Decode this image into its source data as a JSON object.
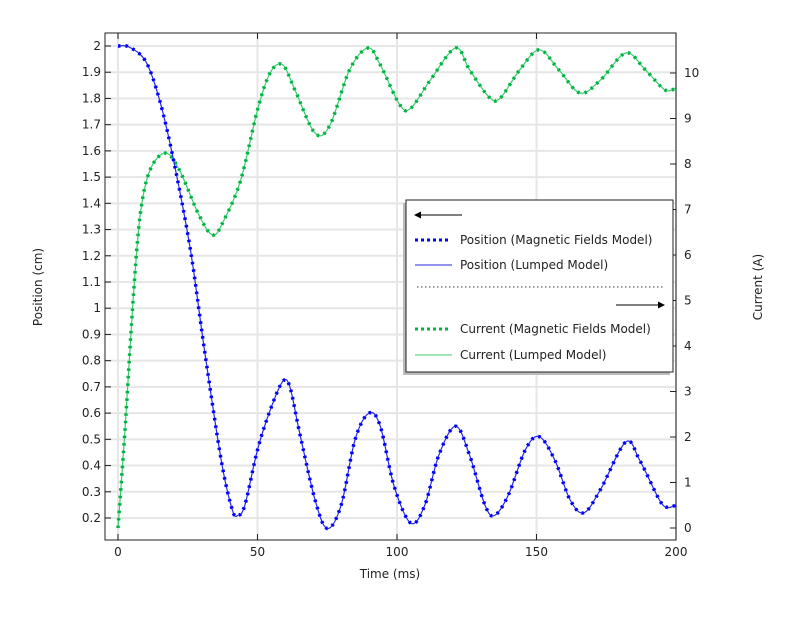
{
  "chart_data": {
    "type": "line",
    "xlabel": "Time (ms)",
    "ylabel_left": "Position (cm)",
    "ylabel_right": "Current (A)",
    "xlim": [
      -4,
      202
    ],
    "ylim_left": [
      0.12,
      2.05
    ],
    "ylim_right": [
      -0.3,
      10.8
    ],
    "x_ticks": [
      "0",
      "50",
      "100",
      "150",
      "200"
    ],
    "y_ticks_left": [
      "0.2",
      "0.3",
      "0.4",
      "0.5",
      "0.6",
      "0.7",
      "0.8",
      "0.9",
      "1",
      "1.1",
      "1.2",
      "1.3",
      "1.4",
      "1.5",
      "1.6",
      "1.7",
      "1.8",
      "1.9",
      "2"
    ],
    "y_ticks_right": [
      "0",
      "1",
      "2",
      "3",
      "4",
      "5",
      "6",
      "7",
      "8",
      "9",
      "10"
    ],
    "grid": true,
    "legend_placement": "right",
    "legend": {
      "left_axis_arrow": "left-arrow",
      "right_axis_arrow": "right-arrow",
      "entries": [
        {
          "label": "Position (Magnetic Fields Model)",
          "style": "dotted",
          "color": "#0000ff"
        },
        {
          "label": "Position (Lumped Model)",
          "style": "solid",
          "color": "#2a2ae0"
        },
        {
          "label": "Current (Magnetic Fields Model)",
          "style": "dotted",
          "color": "#00b444"
        },
        {
          "label": "Current (Lumped Model)",
          "style": "solid",
          "color": "#3ccc6e"
        }
      ]
    },
    "position": {
      "t": [
        0,
        4,
        10,
        15,
        20,
        26,
        31,
        37,
        41,
        43,
        45.5,
        50,
        54.5,
        59,
        61.6,
        65,
        70.6,
        75,
        80,
        85,
        90,
        94,
        99,
        105,
        110,
        115,
        121,
        126,
        131.5,
        135,
        140,
        146,
        151,
        156.6,
        162,
        167,
        173,
        182,
        187,
        194,
        197,
        200
      ],
      "p": [
        2.0,
        1.996,
        1.94,
        1.79,
        1.56,
        1.22,
        0.84,
        0.42,
        0.23,
        0.21,
        0.25,
        0.46,
        0.61,
        0.72,
        0.7,
        0.53,
        0.27,
        0.16,
        0.25,
        0.5,
        0.6,
        0.55,
        0.32,
        0.18,
        0.25,
        0.44,
        0.55,
        0.44,
        0.25,
        0.21,
        0.29,
        0.46,
        0.51,
        0.42,
        0.27,
        0.22,
        0.31,
        0.49,
        0.42,
        0.27,
        0.24,
        0.25
      ]
    },
    "current": {
      "t": [
        0,
        2.5,
        5.4,
        8,
        11.5,
        17,
        22,
        29,
        34,
        38,
        44,
        50,
        54.5,
        59,
        63.4,
        70.6,
        76,
        83,
        89.6,
        94,
        101,
        105,
        112,
        121,
        126,
        133,
        137,
        144,
        151,
        158,
        165.6,
        173,
        182,
        189,
        196,
        200
      ],
      "i": [
        0,
        2.15,
        5.0,
        6.9,
        7.87,
        8.24,
        7.87,
        6.88,
        6.44,
        6.77,
        7.65,
        9.19,
        10.0,
        10.18,
        9.63,
        8.68,
        8.86,
        10.07,
        10.55,
        10.18,
        9.3,
        9.23,
        9.85,
        10.55,
        10.07,
        9.47,
        9.45,
        10.07,
        10.51,
        10.07,
        9.56,
        9.85,
        10.44,
        10.07,
        9.63,
        9.67
      ]
    }
  }
}
